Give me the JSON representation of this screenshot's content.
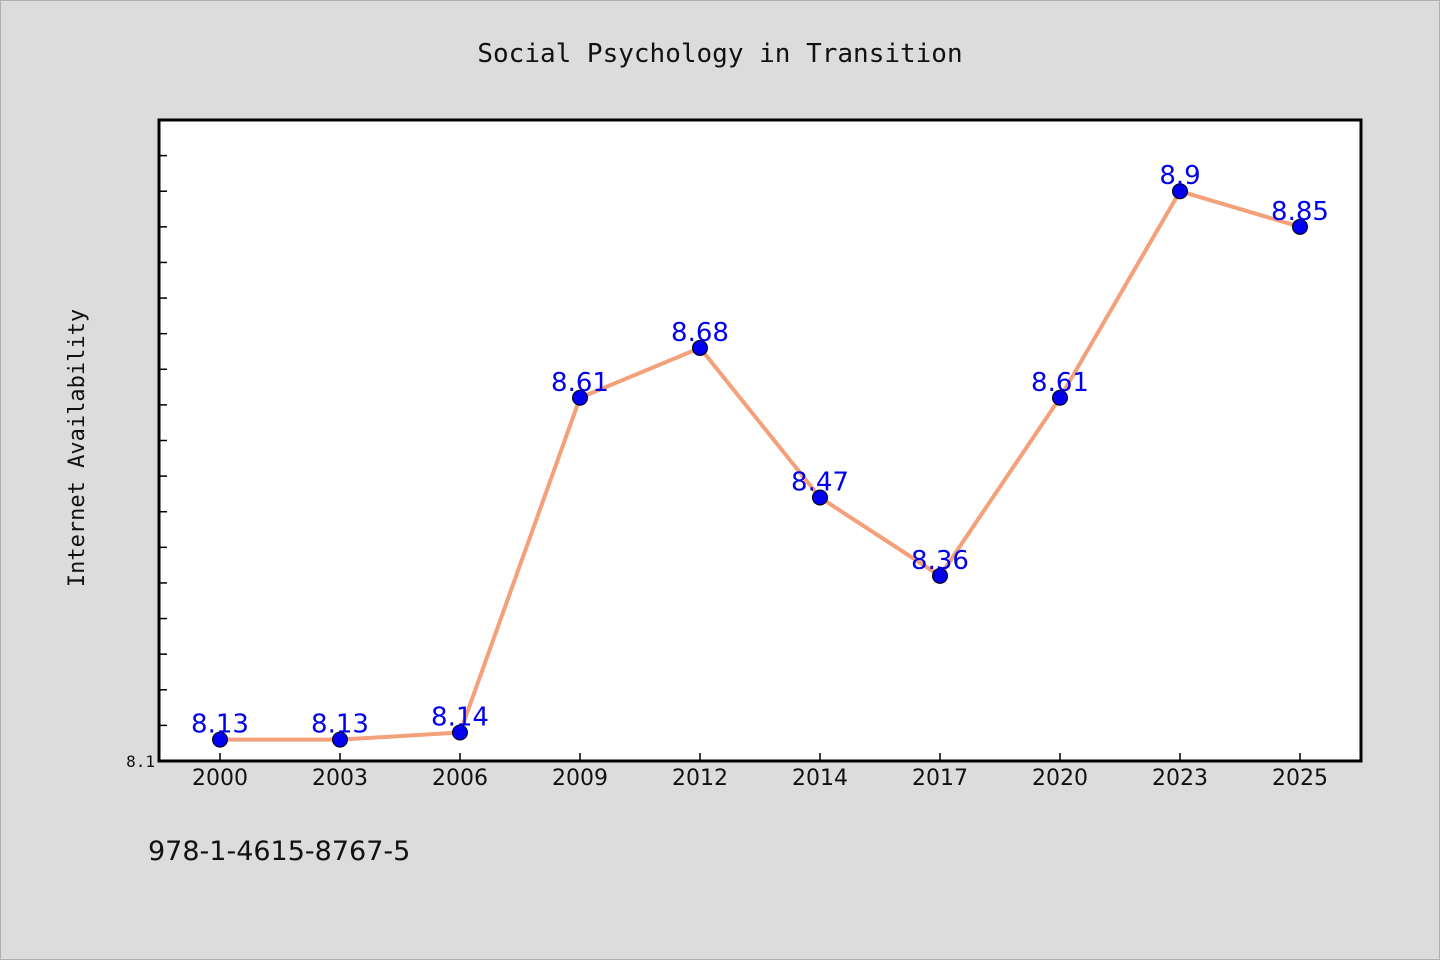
{
  "chart_data": {
    "type": "line",
    "title": "Social Psychology in Transition",
    "ylabel": "Internet Availability",
    "xlabel": "",
    "categories": [
      "2000",
      "2003",
      "2006",
      "2009",
      "2012",
      "2014",
      "2017",
      "2020",
      "2023",
      "2025"
    ],
    "series": [
      {
        "values": [
          8.13,
          8.13,
          8.14,
          8.61,
          8.68,
          8.47,
          8.36,
          8.61,
          8.9,
          8.85
        ],
        "labels": [
          "8.13",
          "8.13",
          "8.14",
          "8.61",
          "8.68",
          "8.47",
          "8.36",
          "8.61",
          "8.9",
          "8.85"
        ],
        "line_color": "#f4a07a",
        "marker_color": "#0000ee",
        "label_color": "#0000ee"
      }
    ],
    "ylim": [
      8.1,
      9.0
    ],
    "ytick_labels": [
      "8.1"
    ],
    "grid": false,
    "legend": "none"
  },
  "footer": {
    "isbn": "978-1-4615-8767-5"
  }
}
